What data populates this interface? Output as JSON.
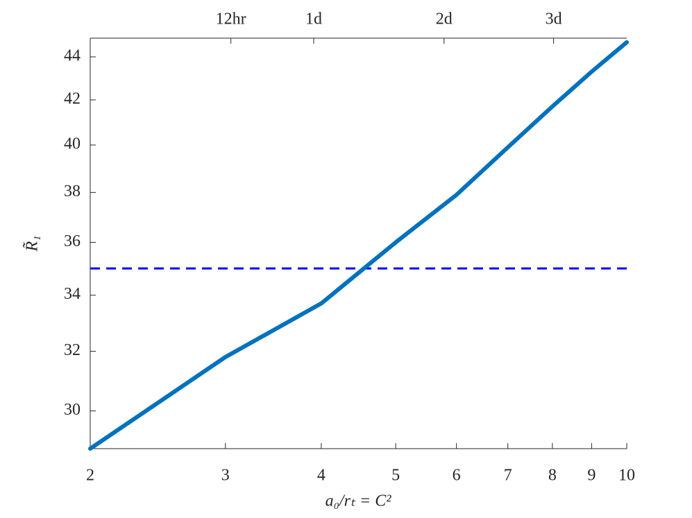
{
  "chart_data": {
    "type": "line",
    "x_label": "a₀/rₜ = C²",
    "y_label": "R̃₁",
    "xscale": "log",
    "yscale": "log",
    "x": [
      2,
      3,
      4,
      5,
      6,
      7,
      8,
      9,
      10
    ],
    "series": [
      {
        "color": "#0072bd",
        "values": [
          28.8,
          31.8,
          33.7,
          36.0,
          37.9,
          39.9,
          41.7,
          43.3,
          44.7
        ]
      }
    ],
    "hlines": [
      {
        "value": 35,
        "color": "#0000ff",
        "style": "dashed"
      }
    ],
    "xlim": [
      2,
      10
    ],
    "ylim": [
      28.8,
      44.9
    ],
    "xticks": [
      2,
      3,
      4,
      5,
      6,
      7,
      8,
      9,
      10
    ],
    "yticks": [
      30,
      32,
      34,
      36,
      38,
      40,
      42,
      44
    ],
    "x2ticks": [
      {
        "value": 3.05,
        "label": "12hr"
      },
      {
        "value": 3.91,
        "label": "1d"
      },
      {
        "value": 5.78,
        "label": "2d"
      },
      {
        "value": 8.03,
        "label": "3d"
      }
    ]
  }
}
